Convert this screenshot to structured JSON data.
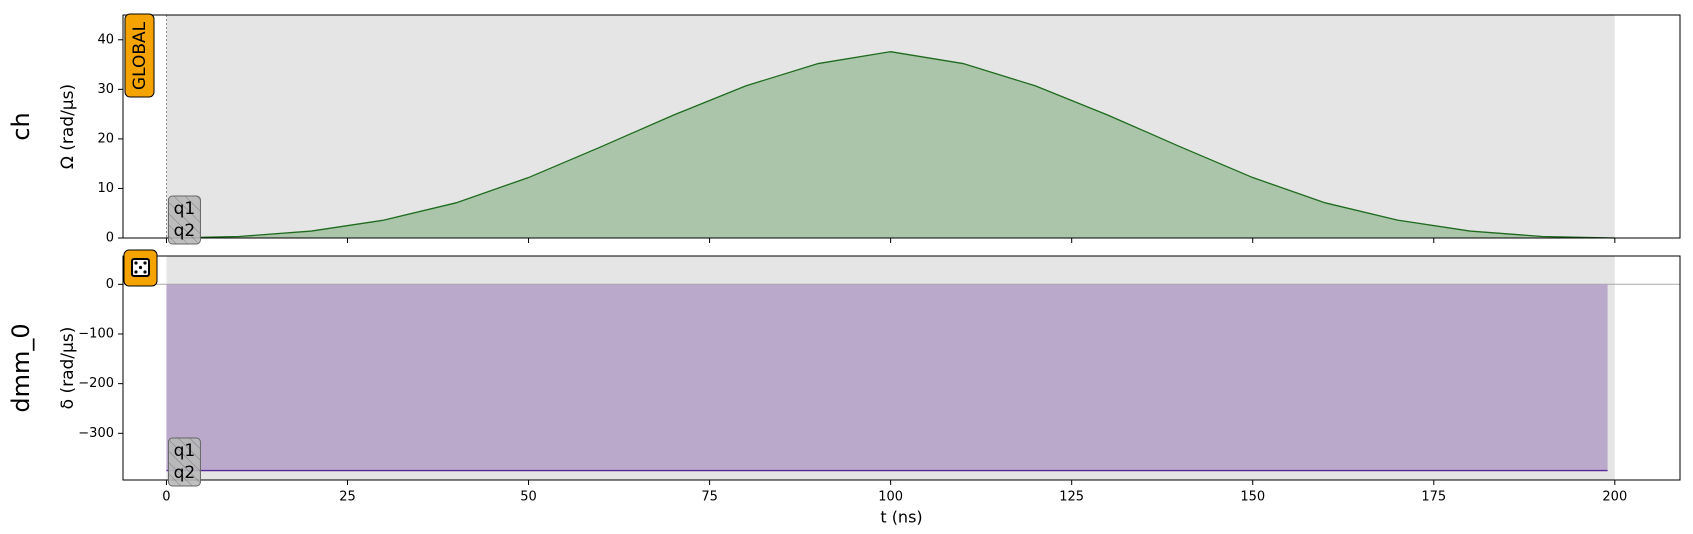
{
  "chart_data": [
    {
      "type": "area",
      "channel": "ch",
      "ylabel": "Ω (rad/µs)",
      "badge": "GLOBAL",
      "targets": [
        "q1",
        "q2"
      ],
      "x": [
        0,
        10,
        20,
        30,
        40,
        50,
        60,
        70,
        80,
        90,
        100,
        110,
        120,
        130,
        140,
        150,
        160,
        170,
        180,
        190,
        200
      ],
      "series": [
        {
          "color": "#1e6b1e",
          "fill": "#a0bf9f",
          "values": [
            0,
            0.3,
            1.4,
            3.6,
            7.1,
            12.2,
            18.4,
            24.8,
            30.7,
            35.2,
            37.6,
            35.2,
            30.7,
            24.8,
            18.4,
            12.2,
            7.1,
            3.6,
            1.4,
            0.3,
            0
          ]
        }
      ],
      "shade": [
        0,
        200
      ],
      "xlim": [
        -6,
        209
      ],
      "xticks": [
        0,
        25,
        50,
        75,
        100,
        125,
        150,
        175,
        200
      ],
      "ylim": [
        0,
        45
      ],
      "yticks": [
        0,
        10,
        20,
        30,
        40
      ]
    },
    {
      "type": "area",
      "channel": "dmm_0",
      "ylabel": "δ (rad/µs)",
      "targets": [
        "q1",
        "q2"
      ],
      "x": [
        0,
        199
      ],
      "series": [
        {
          "color": "#5b2a9a",
          "fill": "#b49fc7",
          "values": [
            -375,
            -375
          ]
        }
      ],
      "shade": [
        0,
        200
      ],
      "xlim": [
        -6,
        209
      ],
      "xticks": [
        0,
        25,
        50,
        75,
        100,
        125,
        150,
        175,
        200
      ],
      "ylim": [
        -394,
        57
      ],
      "yticks": [
        0,
        {
          "value": -100,
          "label": "−100"
        },
        {
          "value": -200,
          "label": "−200"
        },
        {
          "value": -300,
          "label": "−300"
        }
      ],
      "xlabel": "t (ns)"
    }
  ]
}
